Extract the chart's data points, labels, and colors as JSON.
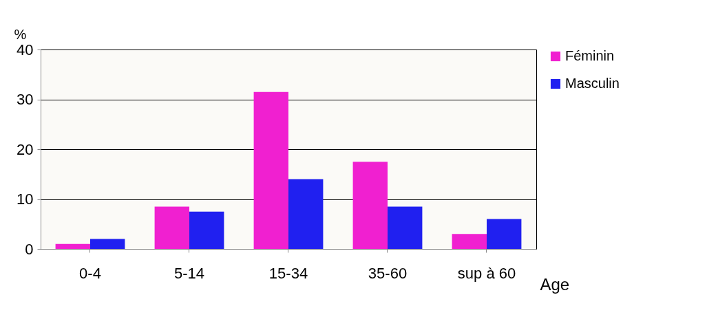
{
  "chart_data": {
    "type": "bar",
    "xlabel": "Age",
    "ylabel": "%",
    "categories": [
      "0-4",
      "5-14",
      "15-34",
      "35-60",
      "sup à 60"
    ],
    "series": [
      {
        "name": "Féminin",
        "color": "#f020d0",
        "values": [
          1,
          8.5,
          31.5,
          17.5,
          3
        ]
      },
      {
        "name": "Masculin",
        "color": "#2020f0",
        "values": [
          2,
          7.5,
          14,
          8.5,
          6
        ]
      }
    ],
    "ylim": [
      0,
      40
    ],
    "yticks": [
      0,
      10,
      20,
      30,
      40
    ],
    "grid": "y",
    "legend": "right"
  }
}
